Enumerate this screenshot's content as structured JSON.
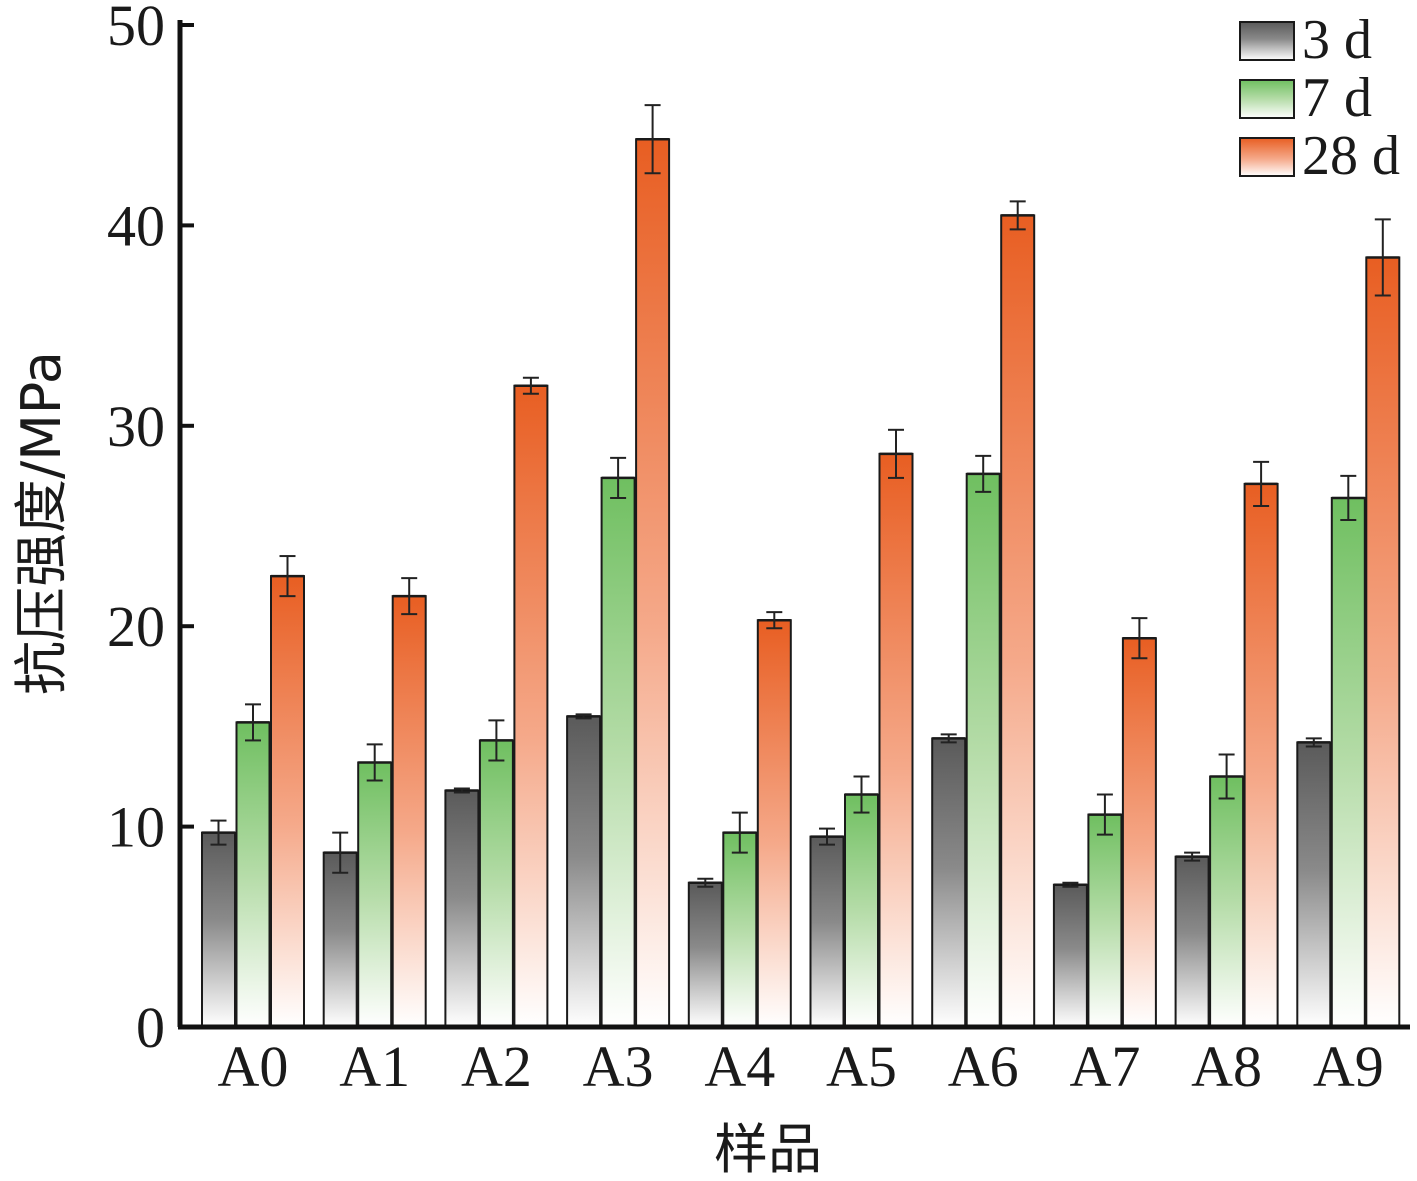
{
  "chart_data": {
    "type": "bar",
    "xlabel": "样品",
    "ylabel": "抗压强度/MPa",
    "ylim": [
      0,
      50
    ],
    "yticks": [
      0,
      10,
      20,
      30,
      40,
      50
    ],
    "categories": [
      "A0",
      "A1",
      "A2",
      "A3",
      "A4",
      "A5",
      "A6",
      "A7",
      "A8",
      "A9"
    ],
    "grid": false,
    "legend_position": "top-right",
    "series": [
      {
        "name": "3 d",
        "color": "#6b6b6b",
        "values": [
          9.7,
          8.7,
          11.8,
          15.5,
          7.2,
          9.5,
          14.4,
          7.1,
          8.5,
          14.2
        ],
        "errors": [
          0.6,
          1.0,
          0.1,
          0.1,
          0.2,
          0.4,
          0.2,
          0.1,
          0.2,
          0.2
        ]
      },
      {
        "name": "7 d",
        "color": "#74c066",
        "values": [
          15.2,
          13.2,
          14.3,
          27.4,
          9.7,
          11.6,
          27.6,
          10.6,
          12.5,
          26.4
        ],
        "errors": [
          0.9,
          0.9,
          1.0,
          1.0,
          1.0,
          0.9,
          0.9,
          1.0,
          1.1,
          1.1
        ]
      },
      {
        "name": "28 d",
        "color": "#e8642a",
        "values": [
          22.5,
          21.5,
          32.0,
          44.3,
          20.3,
          28.6,
          40.5,
          19.4,
          27.1,
          38.4
        ],
        "errors": [
          1.0,
          0.9,
          0.4,
          1.7,
          0.4,
          1.2,
          0.7,
          1.0,
          1.1,
          1.9
        ]
      }
    ]
  }
}
